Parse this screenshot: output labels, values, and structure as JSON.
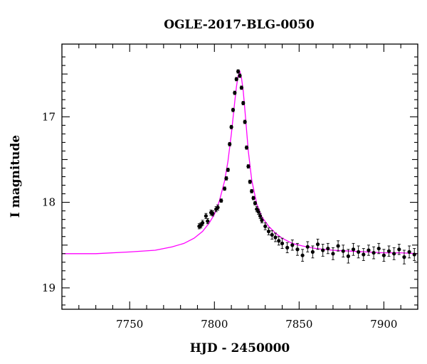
{
  "chart_data": {
    "type": "scatter",
    "title": "OGLE-2017-BLG-0050",
    "xlabel": "HJD - 2450000",
    "ylabel": "I magnitude",
    "xlim": [
      7710,
      7920
    ],
    "ylim": [
      19.25,
      16.15
    ],
    "y_inverted": true,
    "x_ticks": [
      7750,
      7800,
      7850,
      7900
    ],
    "y_ticks": [
      17,
      18,
      19
    ],
    "grid": false,
    "legend": "none",
    "series": [
      {
        "kind": "points_with_errorbars",
        "color": "#000000",
        "x": [
          7791,
          7792,
          7793,
          7795,
          7796,
          7798,
          7799,
          7801,
          7802,
          7804,
          7806,
          7807,
          7808,
          7809,
          7810,
          7811,
          7812,
          7813,
          7814,
          7815,
          7816,
          7817,
          7818,
          7819,
          7820,
          7821,
          7822,
          7823,
          7824,
          7825,
          7826,
          7827,
          7828,
          7830,
          7832,
          7834,
          7836,
          7838,
          7840,
          7843,
          7846,
          7849,
          7852,
          7855,
          7858,
          7861,
          7864,
          7867,
          7870,
          7873,
          7876,
          7879,
          7882,
          7885,
          7888,
          7891,
          7894,
          7897,
          7900,
          7903,
          7906,
          7909,
          7912,
          7915,
          7918
        ],
        "y": [
          18.28,
          18.27,
          18.24,
          18.16,
          18.22,
          18.12,
          18.13,
          18.08,
          18.06,
          17.98,
          17.84,
          17.72,
          17.62,
          17.32,
          17.12,
          16.92,
          16.72,
          16.56,
          16.47,
          16.52,
          16.66,
          16.84,
          17.06,
          17.36,
          17.58,
          17.76,
          17.87,
          17.95,
          18.01,
          18.08,
          18.11,
          18.16,
          18.21,
          18.28,
          18.34,
          18.38,
          18.41,
          18.45,
          18.48,
          18.53,
          18.5,
          18.55,
          18.62,
          18.52,
          18.58,
          18.49,
          18.56,
          18.54,
          18.6,
          18.51,
          18.57,
          18.63,
          18.55,
          18.58,
          18.61,
          18.56,
          18.59,
          18.54,
          18.62,
          18.57,
          18.6,
          18.55,
          18.64,
          18.58,
          18.61
        ],
        "err": [
          0.03,
          0.03,
          0.03,
          0.03,
          0.03,
          0.03,
          0.03,
          0.03,
          0.03,
          0.02,
          0.02,
          0.02,
          0.02,
          0.02,
          0.02,
          0.02,
          0.02,
          0.02,
          0.02,
          0.02,
          0.02,
          0.02,
          0.02,
          0.02,
          0.02,
          0.02,
          0.02,
          0.02,
          0.02,
          0.03,
          0.03,
          0.03,
          0.03,
          0.04,
          0.04,
          0.05,
          0.05,
          0.05,
          0.06,
          0.06,
          0.06,
          0.07,
          0.07,
          0.06,
          0.07,
          0.06,
          0.07,
          0.06,
          0.07,
          0.06,
          0.07,
          0.08,
          0.07,
          0.07,
          0.07,
          0.06,
          0.07,
          0.06,
          0.07,
          0.06,
          0.07,
          0.06,
          0.08,
          0.07,
          0.07
        ]
      },
      {
        "kind": "model_curve",
        "color": "#ff00ff",
        "x": [
          7710,
          7730,
          7750,
          7765,
          7775,
          7782,
          7788,
          7793,
          7797,
          7800,
          7803,
          7806,
          7808,
          7810,
          7812,
          7813,
          7814,
          7815,
          7816,
          7817,
          7818,
          7820,
          7822,
          7825,
          7828,
          7832,
          7836,
          7840,
          7846,
          7852,
          7860,
          7870,
          7880,
          7890,
          7900,
          7910,
          7920
        ],
        "y": [
          18.6,
          18.6,
          18.58,
          18.56,
          18.52,
          18.48,
          18.42,
          18.34,
          18.24,
          18.14,
          17.98,
          17.75,
          17.52,
          17.2,
          16.82,
          16.65,
          16.52,
          16.47,
          16.55,
          16.7,
          16.92,
          17.4,
          17.74,
          18.02,
          18.17,
          18.28,
          18.36,
          18.42,
          18.48,
          18.51,
          18.54,
          18.56,
          18.57,
          18.58,
          18.59,
          18.59,
          18.6
        ]
      }
    ]
  }
}
